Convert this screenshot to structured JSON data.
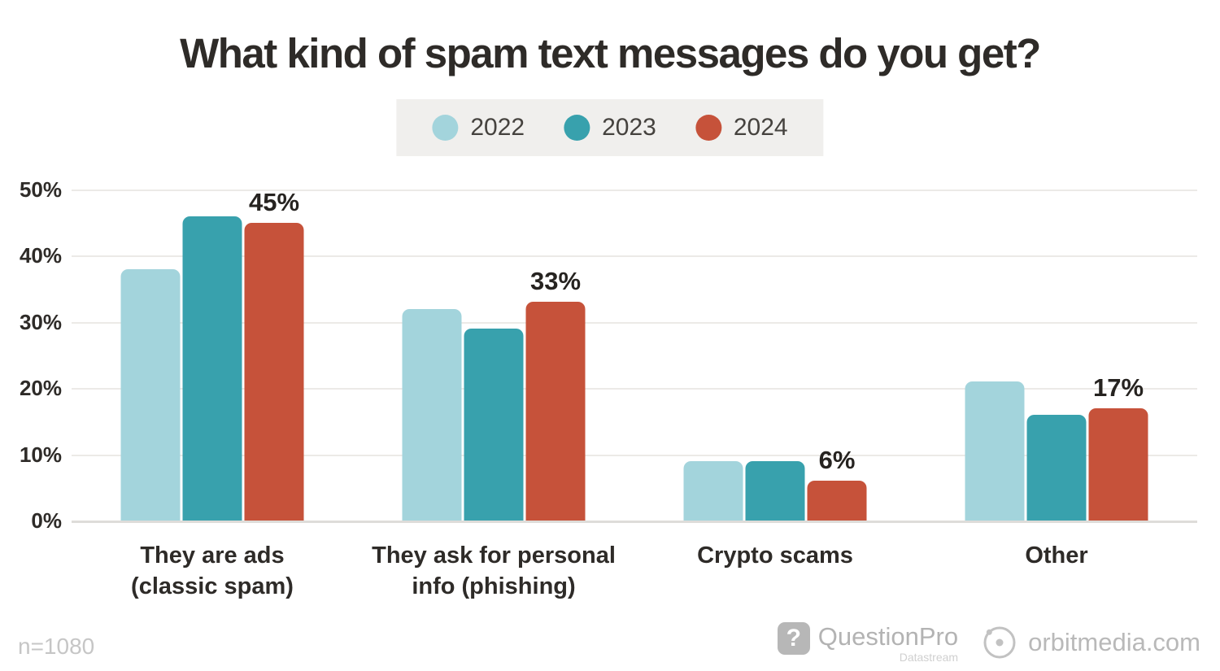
{
  "title": "What kind of spam text messages do you get?",
  "chart_data": {
    "type": "bar",
    "title": "What kind of spam text messages do you get?",
    "categories": [
      "They are ads (classic spam)",
      "They ask for personal info (phishing)",
      "Crypto scams",
      "Other"
    ],
    "categories_display": [
      "They are ads\n(classic spam)",
      "They ask for personal\ninfo (phishing)",
      "Crypto scams",
      "Other"
    ],
    "series": [
      {
        "name": "2022",
        "color": "#a3d4dc",
        "values": [
          38,
          32,
          9,
          21
        ]
      },
      {
        "name": "2023",
        "color": "#38a1ad",
        "values": [
          46,
          29,
          9,
          16
        ]
      },
      {
        "name": "2024",
        "color": "#c6523a",
        "values": [
          45,
          33,
          6,
          17
        ]
      }
    ],
    "data_labels": {
      "series": "2024",
      "values": [
        "45%",
        "33%",
        "6%",
        "17%"
      ]
    },
    "xlabel": "",
    "ylabel": "",
    "ylim": [
      0,
      50
    ],
    "yticks": [
      {
        "value": 50,
        "label": "50%"
      },
      {
        "value": 40,
        "label": "40%"
      },
      {
        "value": 30,
        "label": "30%"
      },
      {
        "value": 20,
        "label": "20%"
      },
      {
        "value": 10,
        "label": "10%"
      },
      {
        "value": 0,
        "label": "0%"
      }
    ],
    "grid": true,
    "legend_position": "top",
    "legend_background": "#f0efed"
  },
  "footer": {
    "sample_size": "n=1080",
    "questionpro": {
      "glyph": "?",
      "name": "QuestionPro",
      "sub": "Datastream"
    },
    "orbitmedia": "orbitmedia.com"
  }
}
